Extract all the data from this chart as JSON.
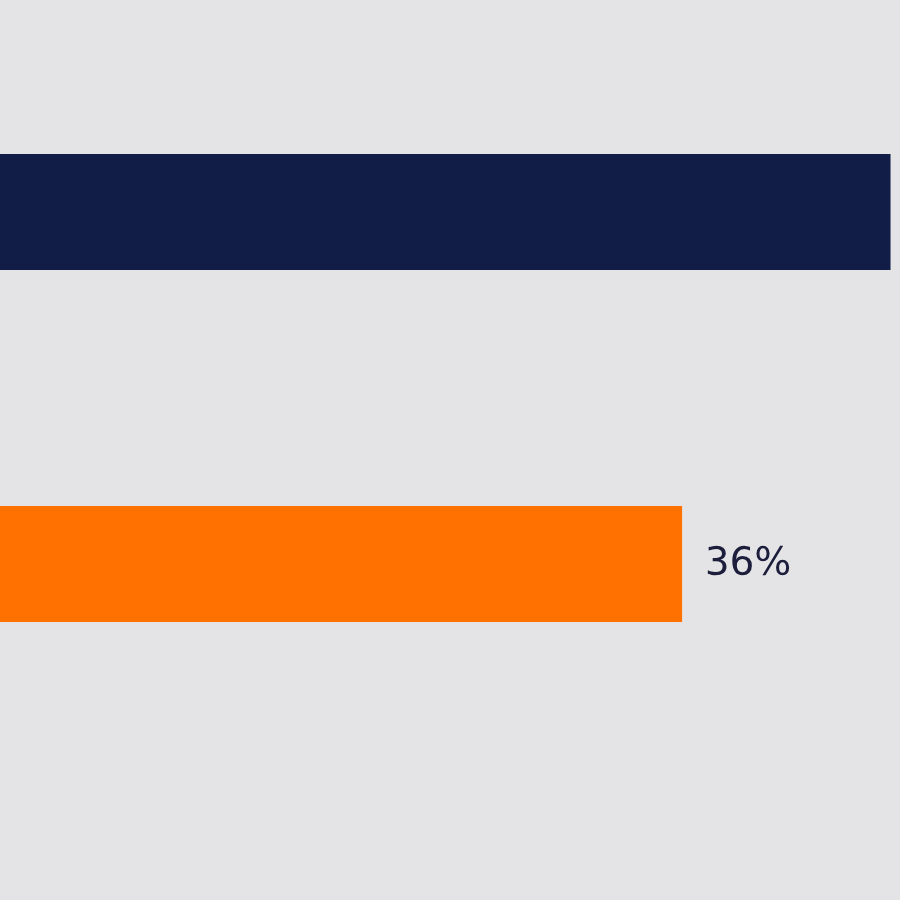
{
  "chart_data": {
    "type": "bar",
    "orientation": "horizontal",
    "categories": [
      null,
      null
    ],
    "values": [
      47,
      36
    ],
    "colors": [
      "#111c47",
      "#ff7100"
    ],
    "xlim": [
      0,
      47.5
    ],
    "value_labels": [
      null,
      "36%"
    ]
  }
}
